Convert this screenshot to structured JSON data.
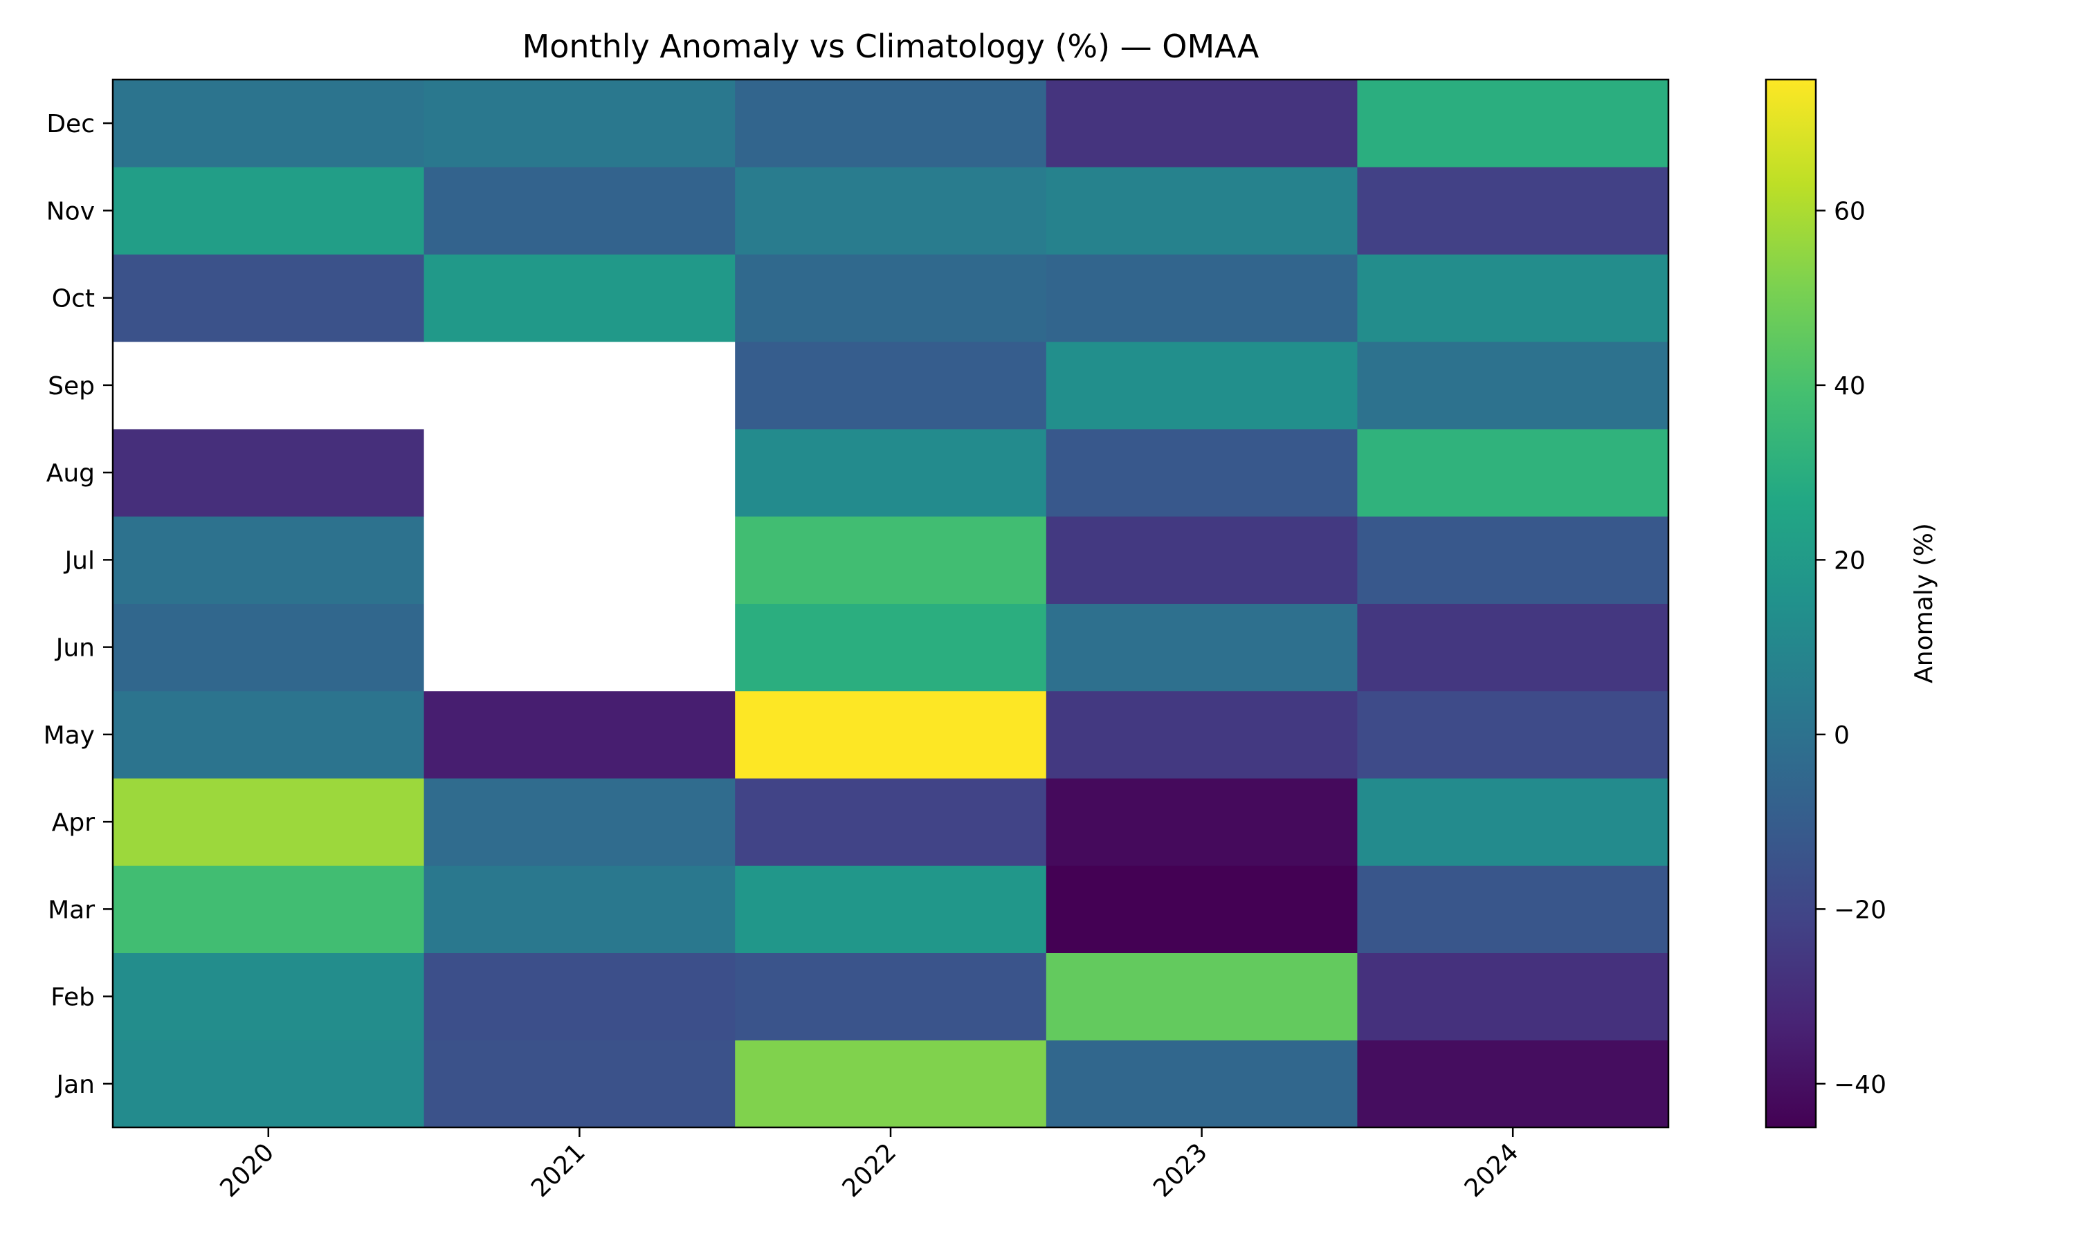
{
  "chart_data": {
    "type": "heatmap",
    "title": "Monthly Anomaly vs Climatology (%) — OMAA",
    "xlabel": "",
    "ylabel": "",
    "x_categories": [
      "2020",
      "2021",
      "2022",
      "2023",
      "2024"
    ],
    "y_categories": [
      "Jan",
      "Feb",
      "Mar",
      "Apr",
      "May",
      "Jun",
      "Jul",
      "Aug",
      "Sep",
      "Oct",
      "Nov",
      "Dec"
    ],
    "values": [
      [
        12,
        -15,
        52,
        -5,
        -41
      ],
      [
        13,
        -16,
        -14,
        46,
        -28
      ],
      [
        38,
        3,
        18,
        -45,
        -13
      ],
      [
        57,
        -3,
        -21,
        -42,
        12
      ],
      [
        1,
        -35,
        75,
        -25,
        -18
      ],
      [
        -5,
        null,
        30,
        -1,
        -26
      ],
      [
        0,
        null,
        38,
        -25,
        -12
      ],
      [
        -29,
        null,
        12,
        -12,
        32
      ],
      [
        null,
        null,
        -10,
        14,
        0
      ],
      [
        -15,
        19,
        -4,
        -6,
        13
      ],
      [
        22,
        -7,
        5,
        8,
        -22
      ],
      [
        1,
        3,
        -6,
        -27,
        30
      ]
    ],
    "colorbar": {
      "label": "Anomaly (%)",
      "min": -45,
      "max": 75,
      "ticks": [
        -40,
        -20,
        0,
        20,
        40,
        60
      ],
      "tick_labels": [
        "−40",
        "−20",
        "0",
        "20",
        "40",
        "60"
      ]
    },
    "colormap": "viridis",
    "missing_color": "#ffffff",
    "grid": false,
    "legend": "none"
  }
}
